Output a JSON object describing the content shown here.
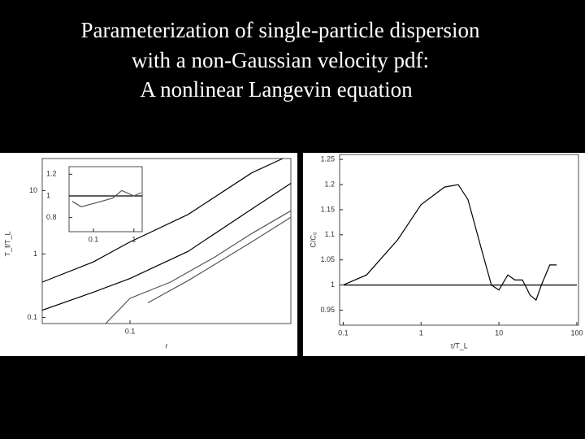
{
  "title_lines": [
    "Parameterization of single-particle dispersion",
    "with a non-Gaussian velocity pdf:",
    "A nonlinear Langevin equation"
  ],
  "chart_data": [
    {
      "type": "line",
      "x_label": "r",
      "y_label": "T_f/T_L",
      "xlog": true,
      "ylog": true,
      "xlim": [
        0.019,
        2.1
      ],
      "ylim": [
        0.08,
        32
      ],
      "xticks": [
        0.1
      ],
      "yticks": [
        0.1,
        1,
        10
      ],
      "series": [
        {
          "color": "#000000",
          "x": [
            0.019,
            0.05,
            0.1,
            0.3,
            1,
            1.8
          ],
          "values": [
            0.36,
            0.75,
            1.55,
            4.2,
            19,
            32
          ]
        },
        {
          "color": "#000000",
          "x": [
            0.019,
            0.05,
            0.1,
            0.3,
            1,
            2.1
          ],
          "values": [
            0.13,
            0.25,
            0.41,
            1.1,
            5.1,
            13
          ]
        },
        {
          "color": "#555555",
          "x": [
            0.063,
            0.1,
            0.215,
            0.5,
            1,
            2.1
          ],
          "values": [
            0.08,
            0.2,
            0.36,
            0.9,
            2.1,
            4.8
          ]
        },
        {
          "color": "#555555",
          "x": [
            0.14,
            0.3,
            0.6,
            1,
            2.1
          ],
          "values": [
            0.17,
            0.38,
            0.85,
            1.55,
            3.8
          ]
        }
      ]
    },
    {
      "type": "line",
      "xlog": true,
      "ylog": false,
      "xlim": [
        0.025,
        1.6
      ],
      "ylim": [
        0.67,
        1.27
      ],
      "xticks": [
        0.1,
        1
      ],
      "yticks": [
        0.8,
        1,
        1.2
      ],
      "series": [
        {
          "color": "#000000",
          "x": [
            0.025,
            1.6
          ],
          "values": [
            1,
            1
          ]
        },
        {
          "color": "#555555",
          "x": [
            0.03,
            0.05,
            0.1,
            0.3,
            0.5,
            1,
            1.5
          ],
          "values": [
            0.95,
            0.9,
            0.93,
            0.98,
            1.05,
            1.0,
            1.03
          ]
        }
      ]
    },
    {
      "type": "line",
      "x_label": "τ/T_L",
      "y_label": "C/C₀",
      "xlog": true,
      "ylog": false,
      "xlim": [
        0.09,
        105
      ],
      "ylim": [
        0.92,
        1.26
      ],
      "xticks": [
        0.1,
        1,
        10,
        100
      ],
      "yticks": [
        0.95,
        1,
        1.05,
        1.1,
        1.15,
        1.2,
        1.25
      ],
      "series": [
        {
          "color": "#000000",
          "x": [
            0.1,
            0.2,
            0.5,
            1,
            2,
            3,
            4,
            6,
            8,
            10,
            13,
            16,
            20,
            25,
            30,
            35,
            45,
            55
          ],
          "values": [
            1.0,
            1.02,
            1.09,
            1.16,
            1.195,
            1.2,
            1.17,
            1.07,
            1.0,
            0.99,
            1.02,
            1.01,
            1.01,
            0.98,
            0.97,
            1.0,
            1.04,
            1.04
          ]
        },
        {
          "color": "#000000",
          "x": [
            0.1,
            100
          ],
          "values": [
            1,
            1
          ]
        }
      ]
    }
  ]
}
